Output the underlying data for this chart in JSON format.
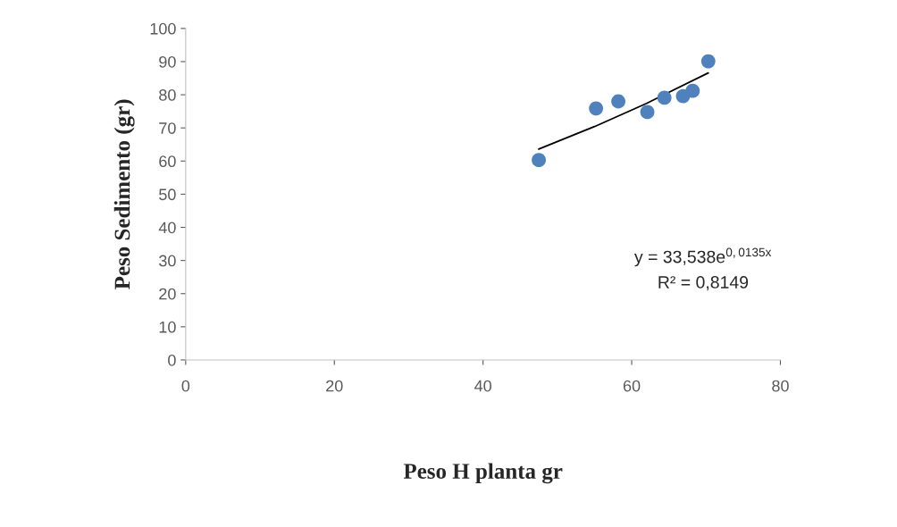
{
  "chart_data": {
    "type": "scatter",
    "xlabel": "Peso H planta gr",
    "ylabel": "Peso Sedimento (gr)",
    "series": [
      {
        "color": "#4f81bd",
        "marker": "circle",
        "x": [
          47.5,
          55.2,
          58.2,
          62.1,
          64.4,
          66.9,
          68.2,
          70.3
        ],
        "values": [
          60.3,
          75.9,
          78.0,
          74.8,
          79.1,
          79.6,
          81.2,
          90.1
        ]
      },
      {
        "type": "line",
        "marker": "none",
        "color": "#000000",
        "x": [
          47.5,
          55,
          62,
          70.3
        ],
        "values": [
          63.6,
          70.4,
          77.4,
          86.6
        ]
      }
    ],
    "xlim": [
      0,
      80
    ],
    "xticks": [
      0,
      20,
      40,
      60,
      80
    ],
    "ylim": [
      0,
      100
    ],
    "yticks": [
      0,
      10,
      20,
      30,
      40,
      50,
      60,
      70,
      80,
      90,
      100
    ],
    "grid": false,
    "annotations": [
      "y = 33,538e$^{0,0135x}$",
      "R² = 0,8149"
    ]
  }
}
